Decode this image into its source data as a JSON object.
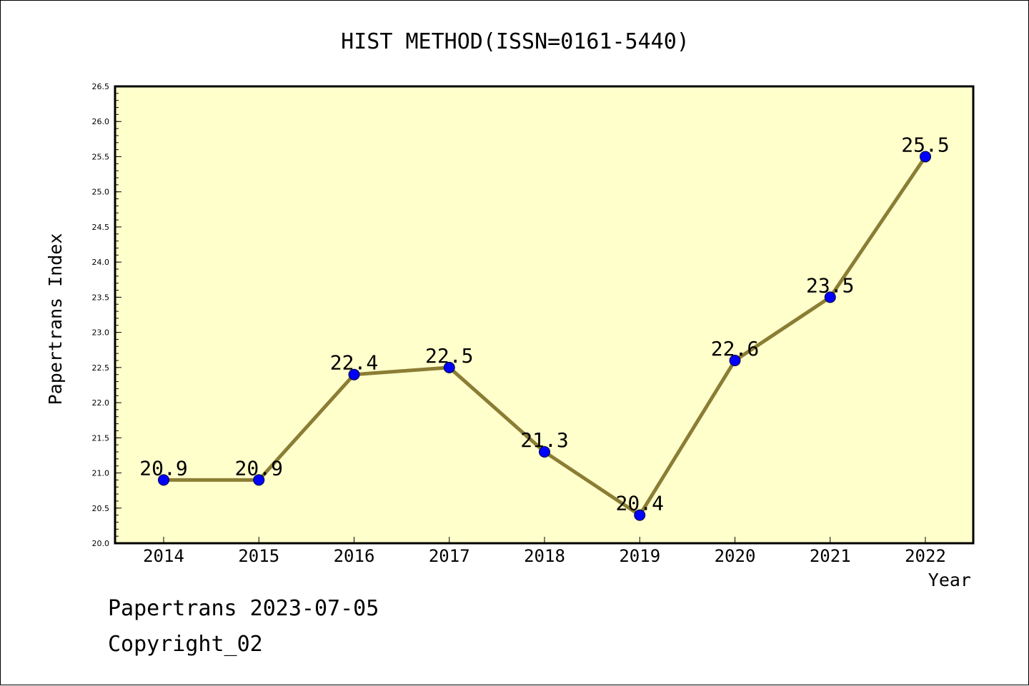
{
  "colors": {
    "plot_background": "#ffffcc",
    "line": "#8b7d34",
    "marker_fill": "#0000ff",
    "marker_stroke": "#000033",
    "axis": "#000000",
    "text": "#000000"
  },
  "footer": {
    "line1": "Papertrans 2023-07-05",
    "line2": "Copyright_02"
  },
  "chart_data": {
    "type": "line",
    "title": "HIST METHOD(ISSN=0161-5440)",
    "xlabel": "Year",
    "ylabel": "Papertrans Index",
    "categories": [
      "2014",
      "2015",
      "2016",
      "2017",
      "2018",
      "2019",
      "2020",
      "2021",
      "2022"
    ],
    "series": [
      {
        "values": [
          20.9,
          20.9,
          22.4,
          22.5,
          21.3,
          20.4,
          22.6,
          23.5,
          25.5
        ],
        "data_labels": [
          "20.9",
          "20.9",
          "22.4",
          "22.5",
          "21.3",
          "20.4",
          "22.6",
          "23.5",
          "25.5"
        ]
      }
    ],
    "ylim": [
      20.0,
      26.5
    ],
    "yticks": [
      "20.0",
      "20.5",
      "21.0",
      "21.5",
      "22.0",
      "22.5",
      "23.0",
      "23.5",
      "24.0",
      "24.5",
      "25.0",
      "25.5",
      "26.0",
      "26.5"
    ],
    "y_minor_step": 0.1,
    "grid": false,
    "legend": "none"
  }
}
